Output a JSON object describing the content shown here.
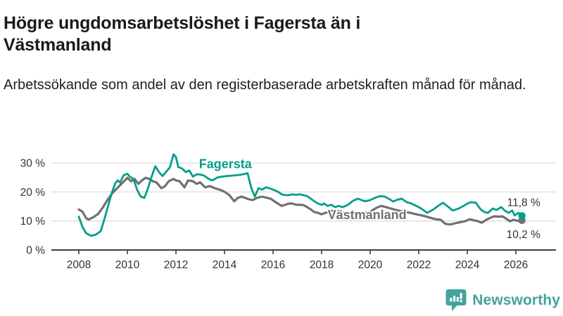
{
  "footer": {
    "brand": "Newsworthy",
    "brand_color": "#44a39c",
    "logo_icon": "bar-chart-speech-bubble-icon"
  },
  "chart_data": {
    "type": "line",
    "title": "Högre ungdomsarbetslöshet i Fagersta än i Västmanland",
    "subtitle": "Arbetssökande som andel av den registerbaserade arbetskraften månad för månad.",
    "unit": "%",
    "x_type": "decimal_year",
    "xlim": [
      2006.9,
      2027.6
    ],
    "ylim": [
      0,
      34
    ],
    "grid": "horizontal",
    "legend_position": "inline-labels",
    "xticks": [
      2008,
      2010,
      2012,
      2014,
      2016,
      2018,
      2020,
      2022,
      2024,
      2026
    ],
    "yticks": [
      {
        "value": 0,
        "label": "0 %"
      },
      {
        "value": 10,
        "label": "10 %"
      },
      {
        "value": 20,
        "label": "20 %"
      },
      {
        "value": 30,
        "label": "30 %"
      }
    ],
    "colors": {
      "axis_text": "#333333",
      "axis_line": "#3f3f3f",
      "gridline": "#dcdcdc",
      "end_label_text": "#333333"
    },
    "series_labels": [
      {
        "text": "Fagersta",
        "color": "#009e8c",
        "year": 2012.95,
        "pct": 28.2
      },
      {
        "text": "Västmanland",
        "color": "#707070",
        "year": 2018.25,
        "pct": 10.7
      }
    ],
    "series": [
      {
        "name": "Fagersta",
        "color": "#009e8c",
        "end_label": "11,8 %",
        "end_value": 11.8,
        "points": [
          [
            2008.0,
            11.5
          ],
          [
            2008.15,
            8.0
          ],
          [
            2008.3,
            5.8
          ],
          [
            2008.5,
            4.9
          ],
          [
            2008.7,
            5.3
          ],
          [
            2008.9,
            6.5
          ],
          [
            2009.05,
            10.5
          ],
          [
            2009.2,
            15.0
          ],
          [
            2009.35,
            19.5
          ],
          [
            2009.5,
            23.0
          ],
          [
            2009.6,
            24.0
          ],
          [
            2009.7,
            23.3
          ],
          [
            2009.85,
            25.8
          ],
          [
            2010.0,
            26.3
          ],
          [
            2010.1,
            25.3
          ],
          [
            2010.25,
            24.5
          ],
          [
            2010.4,
            20.8
          ],
          [
            2010.55,
            18.4
          ],
          [
            2010.7,
            18.0
          ],
          [
            2010.85,
            21.3
          ],
          [
            2011.0,
            25.3
          ],
          [
            2011.15,
            28.9
          ],
          [
            2011.3,
            26.9
          ],
          [
            2011.45,
            25.5
          ],
          [
            2011.6,
            27.0
          ],
          [
            2011.75,
            28.5
          ],
          [
            2011.9,
            33.0
          ],
          [
            2012.0,
            32.0
          ],
          [
            2012.1,
            28.6
          ],
          [
            2012.25,
            28.1
          ],
          [
            2012.4,
            26.9
          ],
          [
            2012.55,
            27.4
          ],
          [
            2012.7,
            25.3
          ],
          [
            2012.85,
            26.1
          ],
          [
            2013.0,
            26.0
          ],
          [
            2013.15,
            25.7
          ],
          [
            2013.35,
            24.5
          ],
          [
            2013.5,
            24.0
          ],
          [
            2013.7,
            25.0
          ],
          [
            2013.9,
            25.3
          ],
          [
            2014.1,
            25.5
          ],
          [
            2014.4,
            25.7
          ],
          [
            2014.7,
            26.0
          ],
          [
            2014.95,
            26.5
          ],
          [
            2015.1,
            21.5
          ],
          [
            2015.25,
            18.4
          ],
          [
            2015.4,
            21.3
          ],
          [
            2015.55,
            20.8
          ],
          [
            2015.7,
            21.6
          ],
          [
            2015.85,
            21.3
          ],
          [
            2016.0,
            20.8
          ],
          [
            2016.2,
            20.1
          ],
          [
            2016.35,
            19.2
          ],
          [
            2016.5,
            18.9
          ],
          [
            2016.65,
            18.9
          ],
          [
            2016.8,
            19.2
          ],
          [
            2016.95,
            19.0
          ],
          [
            2017.1,
            19.2
          ],
          [
            2017.25,
            18.9
          ],
          [
            2017.4,
            18.6
          ],
          [
            2017.55,
            17.7
          ],
          [
            2017.7,
            16.8
          ],
          [
            2017.85,
            16.0
          ],
          [
            2018.0,
            15.6
          ],
          [
            2018.1,
            16.0
          ],
          [
            2018.25,
            15.2
          ],
          [
            2018.4,
            15.6
          ],
          [
            2018.55,
            14.8
          ],
          [
            2018.7,
            15.2
          ],
          [
            2018.85,
            14.8
          ],
          [
            2019.0,
            15.2
          ],
          [
            2019.15,
            16.0
          ],
          [
            2019.3,
            17.0
          ],
          [
            2019.5,
            17.7
          ],
          [
            2019.65,
            17.2
          ],
          [
            2019.8,
            16.8
          ],
          [
            2020.0,
            17.2
          ],
          [
            2020.2,
            18.0
          ],
          [
            2020.4,
            18.6
          ],
          [
            2020.6,
            18.4
          ],
          [
            2020.8,
            17.5
          ],
          [
            2020.95,
            16.7
          ],
          [
            2021.1,
            17.3
          ],
          [
            2021.3,
            17.7
          ],
          [
            2021.5,
            16.5
          ],
          [
            2021.7,
            16.0
          ],
          [
            2021.9,
            15.2
          ],
          [
            2022.1,
            14.3
          ],
          [
            2022.35,
            12.8
          ],
          [
            2022.6,
            14.0
          ],
          [
            2022.85,
            15.5
          ],
          [
            2023.0,
            16.3
          ],
          [
            2023.2,
            15.0
          ],
          [
            2023.4,
            13.6
          ],
          [
            2023.65,
            14.3
          ],
          [
            2023.85,
            15.2
          ],
          [
            2024.0,
            16.0
          ],
          [
            2024.15,
            16.5
          ],
          [
            2024.35,
            16.3
          ],
          [
            2024.55,
            14.0
          ],
          [
            2024.7,
            13.1
          ],
          [
            2024.85,
            12.8
          ],
          [
            2025.05,
            14.3
          ],
          [
            2025.2,
            13.8
          ],
          [
            2025.4,
            14.8
          ],
          [
            2025.55,
            13.5
          ],
          [
            2025.7,
            12.8
          ],
          [
            2025.85,
            13.6
          ],
          [
            2025.95,
            11.9
          ],
          [
            2026.1,
            12.8
          ],
          [
            2026.25,
            11.8
          ]
        ]
      },
      {
        "name": "Västmanland",
        "color": "#707070",
        "end_label": "10,2 %",
        "end_value": 10.2,
        "points": [
          [
            2008.0,
            14.0
          ],
          [
            2008.15,
            13.2
          ],
          [
            2008.3,
            11.0
          ],
          [
            2008.4,
            10.5
          ],
          [
            2008.6,
            11.3
          ],
          [
            2008.8,
            12.5
          ],
          [
            2009.0,
            14.8
          ],
          [
            2009.2,
            17.5
          ],
          [
            2009.4,
            19.8
          ],
          [
            2009.6,
            21.5
          ],
          [
            2009.8,
            23.2
          ],
          [
            2010.0,
            24.9
          ],
          [
            2010.15,
            23.7
          ],
          [
            2010.3,
            24.5
          ],
          [
            2010.45,
            22.8
          ],
          [
            2010.6,
            24.0
          ],
          [
            2010.75,
            24.9
          ],
          [
            2010.9,
            24.5
          ],
          [
            2011.05,
            23.7
          ],
          [
            2011.2,
            23.3
          ],
          [
            2011.4,
            21.3
          ],
          [
            2011.55,
            22.0
          ],
          [
            2011.7,
            23.7
          ],
          [
            2011.9,
            24.5
          ],
          [
            2012.0,
            24.0
          ],
          [
            2012.15,
            23.7
          ],
          [
            2012.35,
            21.6
          ],
          [
            2012.5,
            24.0
          ],
          [
            2012.7,
            23.7
          ],
          [
            2012.85,
            22.8
          ],
          [
            2013.0,
            23.3
          ],
          [
            2013.2,
            21.6
          ],
          [
            2013.4,
            22.0
          ],
          [
            2013.6,
            21.3
          ],
          [
            2013.8,
            20.8
          ],
          [
            2014.0,
            20.1
          ],
          [
            2014.2,
            18.9
          ],
          [
            2014.4,
            16.8
          ],
          [
            2014.55,
            18.0
          ],
          [
            2014.7,
            18.4
          ],
          [
            2014.85,
            18.0
          ],
          [
            2015.0,
            17.5
          ],
          [
            2015.15,
            17.2
          ],
          [
            2015.35,
            18.0
          ],
          [
            2015.55,
            18.4
          ],
          [
            2015.75,
            18.0
          ],
          [
            2015.9,
            17.7
          ],
          [
            2016.05,
            16.8
          ],
          [
            2016.2,
            16.0
          ],
          [
            2016.35,
            15.2
          ],
          [
            2016.5,
            15.6
          ],
          [
            2016.65,
            16.0
          ],
          [
            2016.8,
            16.0
          ],
          [
            2016.95,
            15.6
          ],
          [
            2017.1,
            15.6
          ],
          [
            2017.25,
            15.5
          ],
          [
            2017.4,
            14.8
          ],
          [
            2017.55,
            14.0
          ],
          [
            2017.7,
            13.1
          ],
          [
            2017.85,
            12.8
          ],
          [
            2018.0,
            12.3
          ],
          [
            2018.15,
            12.8
          ],
          [
            2018.3,
            13.1
          ],
          [
            2018.45,
            13.6
          ],
          [
            2018.6,
            13.1
          ],
          [
            2018.75,
            12.8
          ],
          [
            2019.0,
            12.8
          ],
          [
            2019.25,
            13.0
          ],
          [
            2019.5,
            12.5
          ],
          [
            2019.75,
            12.8
          ],
          [
            2020.0,
            13.2
          ],
          [
            2020.25,
            14.5
          ],
          [
            2020.45,
            15.2
          ],
          [
            2020.65,
            14.8
          ],
          [
            2020.9,
            14.2
          ],
          [
            2021.15,
            13.6
          ],
          [
            2021.4,
            13.2
          ],
          [
            2021.65,
            12.8
          ],
          [
            2021.9,
            12.3
          ],
          [
            2022.15,
            11.9
          ],
          [
            2022.4,
            11.3
          ],
          [
            2022.65,
            10.7
          ],
          [
            2022.9,
            10.4
          ],
          [
            2023.1,
            9.0
          ],
          [
            2023.3,
            8.8
          ],
          [
            2023.5,
            9.2
          ],
          [
            2023.7,
            9.6
          ],
          [
            2023.9,
            9.9
          ],
          [
            2024.1,
            10.6
          ],
          [
            2024.3,
            10.2
          ],
          [
            2024.45,
            9.9
          ],
          [
            2024.6,
            9.4
          ],
          [
            2024.8,
            10.5
          ],
          [
            2024.95,
            11.1
          ],
          [
            2025.1,
            11.6
          ],
          [
            2025.3,
            11.5
          ],
          [
            2025.45,
            11.6
          ],
          [
            2025.6,
            10.8
          ],
          [
            2025.75,
            9.9
          ],
          [
            2025.9,
            10.4
          ],
          [
            2026.1,
            10.0
          ],
          [
            2026.25,
            10.2
          ]
        ]
      }
    ]
  }
}
